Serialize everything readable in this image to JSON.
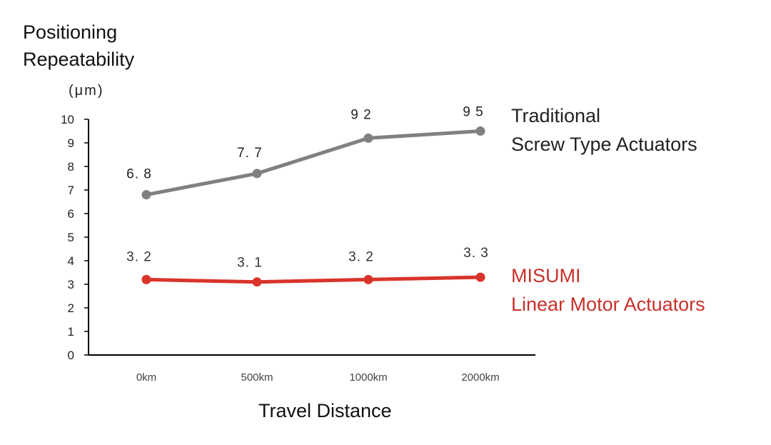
{
  "chart_data": {
    "type": "line",
    "ylabel_lines": [
      "Positioning",
      "Repeatability"
    ],
    "ylabel_unit": "(μm)",
    "xlabel": "Travel Distance",
    "categories": [
      "0km",
      "500km",
      "1000km",
      "2000km"
    ],
    "ylim": [
      0,
      10
    ],
    "yticks": [
      "0",
      "1",
      "2",
      "3",
      "4",
      "5",
      "6",
      "7",
      "8",
      "9",
      "10"
    ],
    "grid": false,
    "legend_placement": "right",
    "series": [
      {
        "name_lines": [
          "Traditional",
          "Screw Type Actuators"
        ],
        "values": [
          6.8,
          7.7,
          9.2,
          9.5
        ],
        "labels": [
          "6. 8",
          "7. 7",
          "9 2",
          "9 5"
        ],
        "color": "#808080",
        "label_color": "#222222"
      },
      {
        "name_lines": [
          "MISUMI",
          "Linear Motor Actuators"
        ],
        "values": [
          3.2,
          3.1,
          3.2,
          3.3
        ],
        "labels": [
          "3. 2",
          "3. 1",
          "3. 2",
          "3. 3"
        ],
        "color": "#d9342b",
        "label_color": "#c8302a"
      }
    ]
  }
}
